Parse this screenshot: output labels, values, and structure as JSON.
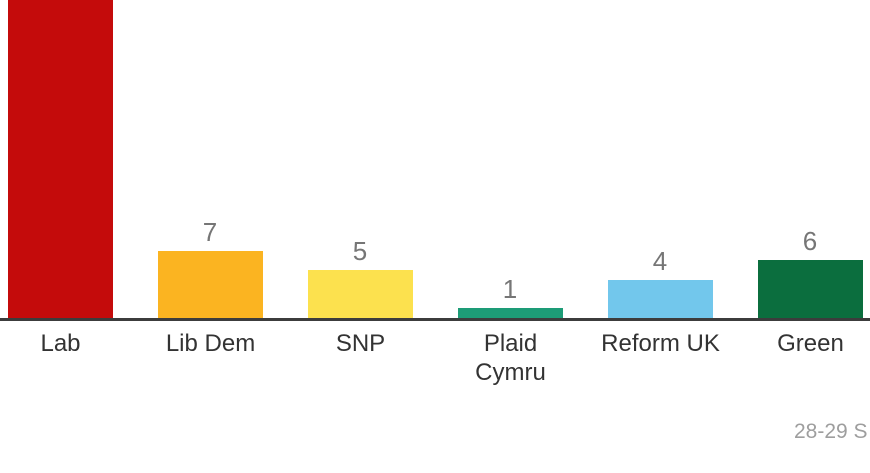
{
  "chart_data": {
    "type": "bar",
    "title": "",
    "xlabel": "",
    "ylabel": "",
    "grid": false,
    "legend": false,
    "categories": [
      "Lab",
      "Lib Dem",
      "SNP",
      "Plaid Cymru",
      "Reform UK",
      "Green"
    ],
    "values": [
      null,
      7,
      5,
      1,
      4,
      6
    ],
    "bars": [
      {
        "label": "Lab",
        "display_label": "Lab",
        "value": null,
        "value_label": "",
        "color": "#c40b0b",
        "clipped_at_top": true
      },
      {
        "label": "Lib Dem",
        "display_label": "Lib Dem",
        "value": 7,
        "value_label": "7",
        "color": "#fbb421",
        "clipped_at_top": false
      },
      {
        "label": "SNP",
        "display_label": "SNP",
        "value": 5,
        "value_label": "5",
        "color": "#fce14e",
        "clipped_at_top": false
      },
      {
        "label": "Plaid Cymru",
        "display_label": "Plaid\nCymru",
        "value": 1,
        "value_label": "1",
        "color": "#1d9c77",
        "clipped_at_top": false
      },
      {
        "label": "Reform UK",
        "display_label": "Reform UK",
        "value": 4,
        "value_label": "4",
        "color": "#72c7ec",
        "clipped_at_top": false
      },
      {
        "label": "Green",
        "display_label": "Green",
        "value": 6,
        "value_label": "6",
        "color": "#0b6e3e",
        "clipped_at_top": false
      }
    ],
    "colors": {
      "axis_line": "#3c3c3c",
      "value_label_text": "#767676",
      "category_label_text": "#333333",
      "footer_text": "#9e9e9e",
      "background": "#ffffff"
    },
    "notes": "Lab bar extends beyond the top of the visible crop, so its value label is not visible. Footer caption is clipped at the right edge of the image."
  },
  "footer": {
    "caption": "28-29 S"
  }
}
